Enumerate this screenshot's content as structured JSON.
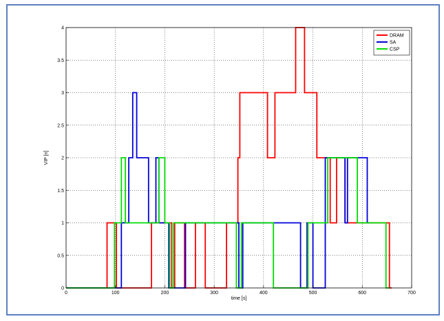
{
  "chart_data": {
    "type": "line",
    "title": "",
    "xlabel": "time [s]",
    "ylabel": "VIP [n]",
    "xlim": [
      0,
      700
    ],
    "ylim": [
      0,
      4
    ],
    "xticks": [
      0,
      100,
      200,
      300,
      400,
      500,
      600,
      700
    ],
    "yticks": [
      0,
      0.5,
      1,
      1.5,
      2,
      2.5,
      3,
      3.5,
      4
    ],
    "xtick_labels": [
      "0",
      "100",
      "200",
      "300",
      "400",
      "500",
      "600",
      "700"
    ],
    "ytick_labels": [
      "0",
      "0.5",
      "1",
      "1.5",
      "2",
      "2.5",
      "3",
      "3.5",
      "4"
    ],
    "grid": true,
    "legend_position": "top-right",
    "series": [
      {
        "name": "DRAM",
        "color": "#ff0000",
        "x": [
          0,
          83,
          83,
          102,
          102,
          173,
          173,
          214,
          214,
          220,
          220,
          240,
          240,
          262,
          262,
          282,
          282,
          325,
          325,
          348,
          348,
          352,
          352,
          408,
          408,
          423,
          423,
          465,
          465,
          483,
          483,
          508,
          508,
          535,
          535,
          548,
          548,
          565,
          565,
          572,
          572,
          655,
          655,
          660
        ],
        "y": [
          0,
          0,
          1,
          1,
          0,
          0,
          1,
          1,
          0,
          0,
          1,
          1,
          0,
          0,
          1,
          1,
          0,
          0,
          1,
          1,
          2,
          2,
          3,
          3,
          2,
          2,
          3,
          3,
          4,
          4,
          3,
          3,
          2,
          2,
          1,
          1,
          2,
          2,
          1,
          1,
          1,
          1,
          0,
          0
        ]
      },
      {
        "name": "SA",
        "color": "#0000dd",
        "x": [
          0,
          105,
          105,
          112,
          112,
          127,
          127,
          135,
          135,
          143,
          143,
          167,
          167,
          182,
          182,
          188,
          188,
          198,
          198,
          208,
          208,
          218,
          218,
          242,
          242,
          248,
          248,
          350,
          350,
          358,
          358,
          370,
          370,
          475,
          475,
          488,
          488,
          500,
          500,
          525,
          525,
          565,
          565,
          570,
          570,
          610,
          610,
          615
        ],
        "y": [
          0,
          0,
          0,
          0,
          1,
          1,
          2,
          2,
          3,
          3,
          2,
          2,
          1,
          1,
          2,
          2,
          1,
          1,
          1,
          1,
          0,
          0,
          0,
          0,
          1,
          1,
          1,
          1,
          0,
          0,
          1,
          1,
          1,
          1,
          0,
          0,
          1,
          1,
          0,
          0,
          2,
          2,
          1,
          1,
          2,
          2,
          1,
          1
        ]
      },
      {
        "name": "CSP",
        "color": "#00dd00",
        "x": [
          0,
          98,
          98,
          108,
          108,
          112,
          112,
          120,
          120,
          188,
          188,
          200,
          200,
          210,
          210,
          218,
          218,
          278,
          278,
          345,
          345,
          355,
          355,
          420,
          420,
          490,
          490,
          530,
          530,
          590,
          590,
          648,
          648,
          655
        ],
        "y": [
          0,
          0,
          1,
          1,
          1,
          1,
          2,
          2,
          1,
          1,
          2,
          2,
          1,
          1,
          0,
          0,
          1,
          1,
          1,
          1,
          0,
          0,
          1,
          1,
          0,
          0,
          1,
          1,
          2,
          2,
          1,
          1,
          0,
          0
        ]
      }
    ]
  }
}
